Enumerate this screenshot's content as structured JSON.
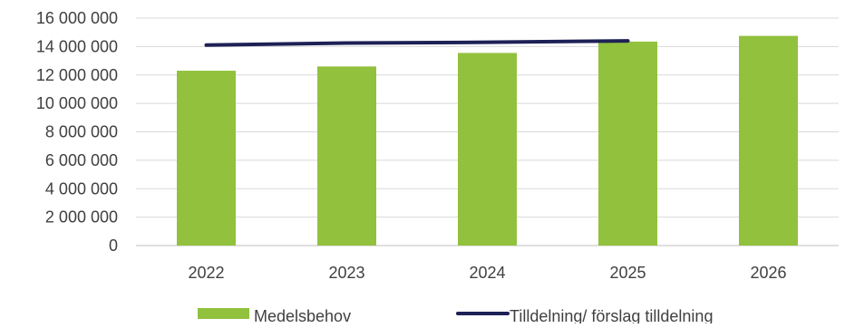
{
  "chart_data": {
    "type": "bar",
    "title": "",
    "xlabel": "",
    "ylabel": "",
    "categories": [
      "2022",
      "2023",
      "2024",
      "2025",
      "2026"
    ],
    "ylim": [
      0,
      16000000
    ],
    "yticks": [
      0,
      2000000,
      4000000,
      6000000,
      8000000,
      10000000,
      12000000,
      14000000,
      16000000
    ],
    "ytick_labels": [
      "0",
      "2 000 000",
      "4 000 000",
      "6 000 000",
      "8 000 000",
      "10 000 000",
      "12 000 000",
      "14 000 000",
      "16 000 000"
    ],
    "grid": true,
    "legend_position": "bottom",
    "series": [
      {
        "name": "Medelsbehov",
        "type": "bar",
        "color": "#92C13E",
        "values": [
          12300000,
          12600000,
          13550000,
          14350000,
          14750000
        ]
      },
      {
        "name": "Tilldelning/ förslag tilldelning",
        "type": "line",
        "color": "#1E2156",
        "values": [
          14100000,
          14250000,
          14300000,
          14400000,
          null
        ]
      }
    ]
  }
}
